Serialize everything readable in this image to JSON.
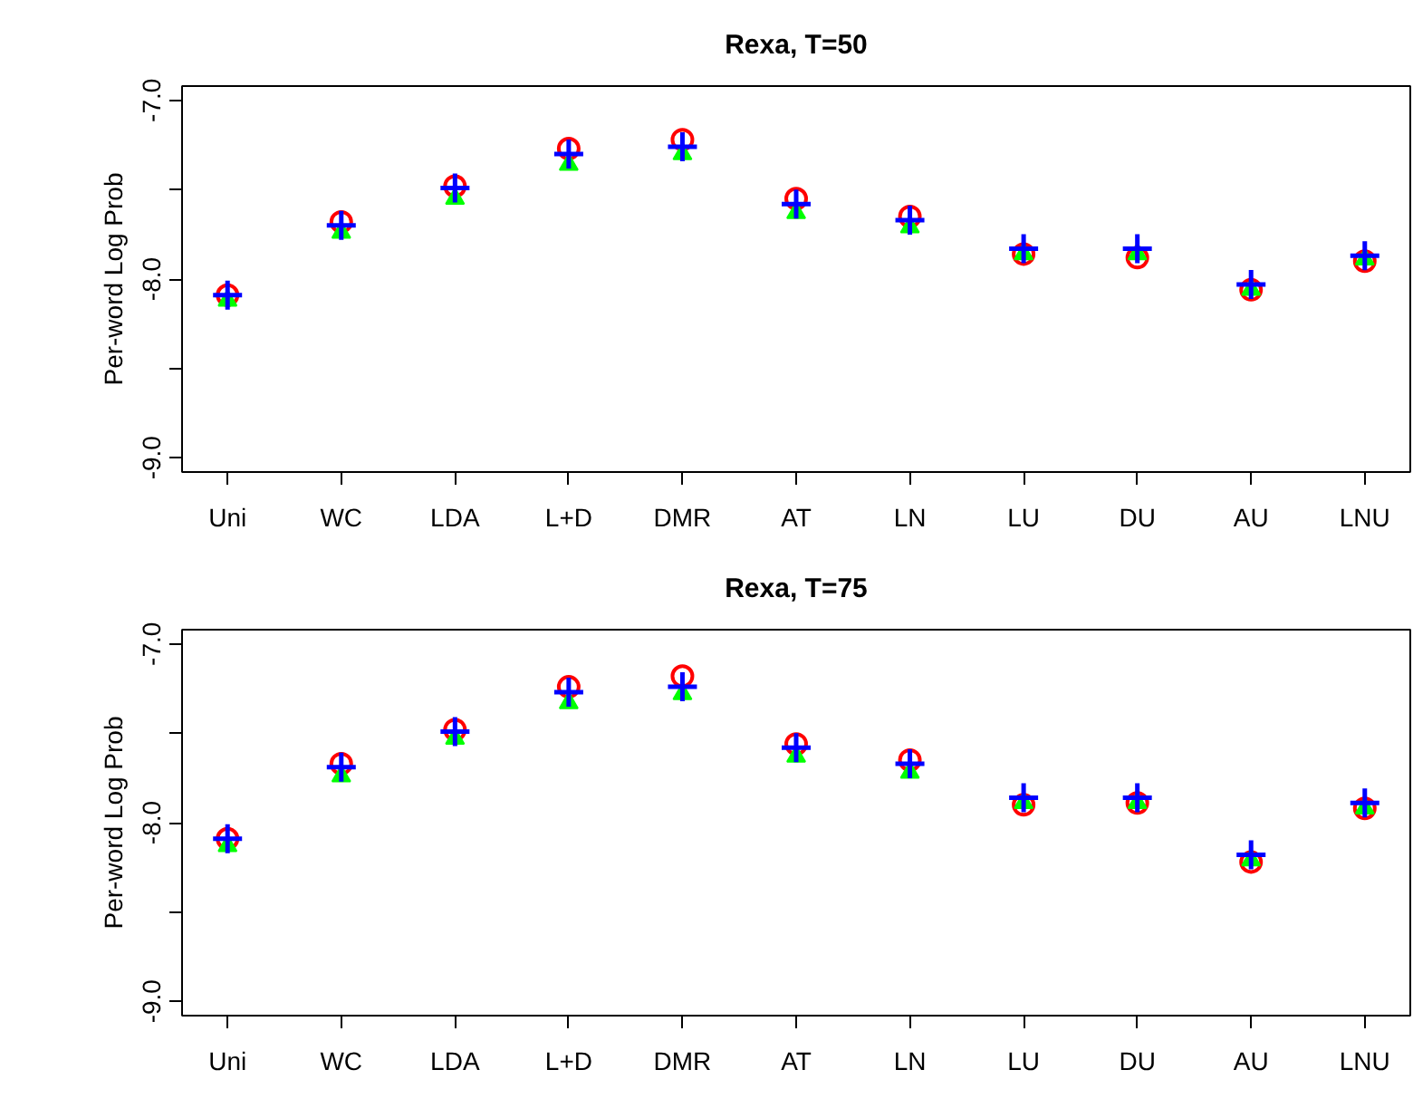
{
  "chart_data": [
    {
      "type": "scatter",
      "title": "Rexa, T=50",
      "ylabel": "Per-word Log Prob",
      "categories": [
        "Uni",
        "WC",
        "LDA",
        "L+D",
        "DMR",
        "AT",
        "LN",
        "LU",
        "DU",
        "AU",
        "LNU"
      ],
      "ylim": [
        -9.08,
        -6.92
      ],
      "yticks": [
        {
          "value": -9,
          "label": "-9.0"
        },
        {
          "value": -8.5,
          "label": null
        },
        {
          "value": -8,
          "label": "-8.0"
        },
        {
          "value": -7.5,
          "label": null
        },
        {
          "value": -7,
          "label": "-7.0"
        }
      ],
      "series": [
        {
          "color": "#ff0000",
          "marker": "circle",
          "values": [
            -8.09,
            -7.68,
            -7.48,
            -7.27,
            -7.22,
            -7.55,
            -7.65,
            -7.86,
            -7.88,
            -8.06,
            -7.9
          ]
        },
        {
          "color": "#00ff00",
          "marker": "triangle",
          "values": [
            -8.12,
            -7.74,
            -7.55,
            -7.36,
            -7.3,
            -7.63,
            -7.71,
            -7.86,
            -7.86,
            -8.06,
            -7.89
          ]
        },
        {
          "color": "#0000ff",
          "marker": "cross",
          "values": [
            -8.09,
            -7.7,
            -7.49,
            -7.3,
            -7.26,
            -7.58,
            -7.67,
            -7.83,
            -7.83,
            -8.03,
            -7.87
          ]
        }
      ]
    },
    {
      "type": "scatter",
      "title": "Rexa, T=75",
      "ylabel": "Per-word Log Prob",
      "categories": [
        "Uni",
        "WC",
        "LDA",
        "L+D",
        "DMR",
        "AT",
        "LN",
        "LU",
        "DU",
        "AU",
        "LNU"
      ],
      "ylim": [
        -9.08,
        -6.92
      ],
      "yticks": [
        {
          "value": -9,
          "label": "-9.0"
        },
        {
          "value": -8.5,
          "label": null
        },
        {
          "value": -8,
          "label": "-8.0"
        },
        {
          "value": -7.5,
          "label": null
        },
        {
          "value": -7,
          "label": "-7.0"
        }
      ],
      "series": [
        {
          "color": "#ff0000",
          "marker": "circle",
          "values": [
            -8.09,
            -7.67,
            -7.48,
            -7.24,
            -7.18,
            -7.56,
            -7.65,
            -7.9,
            -7.89,
            -8.22,
            -7.92
          ]
        },
        {
          "color": "#00ff00",
          "marker": "triangle",
          "values": [
            -8.13,
            -7.74,
            -7.53,
            -7.33,
            -7.28,
            -7.63,
            -7.72,
            -7.89,
            -7.89,
            -8.21,
            -7.92
          ]
        },
        {
          "color": "#0000ff",
          "marker": "cross",
          "values": [
            -8.09,
            -7.69,
            -7.49,
            -7.27,
            -7.24,
            -7.58,
            -7.67,
            -7.86,
            -7.86,
            -8.18,
            -7.89
          ]
        }
      ]
    }
  ]
}
